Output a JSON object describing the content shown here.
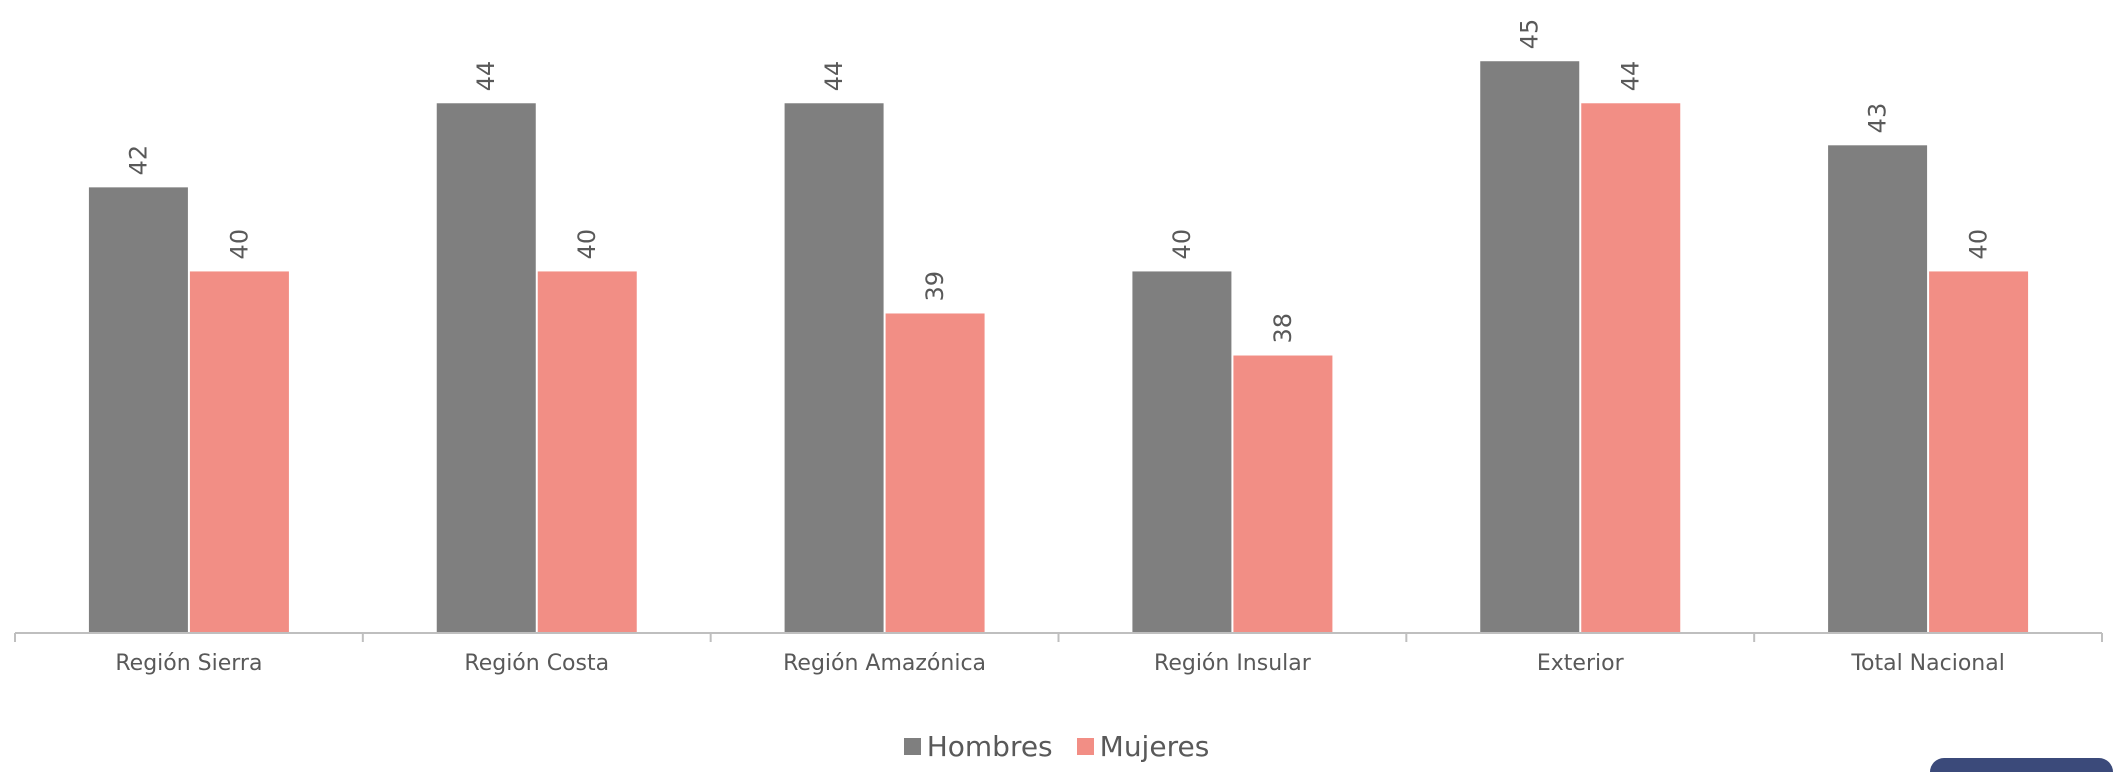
{
  "chart_data": {
    "type": "bar",
    "categories": [
      "Región Sierra",
      "Región Costa",
      "Región Amazónica",
      "Región Insular",
      "Exterior",
      "Total Nacional"
    ],
    "series": [
      {
        "name": "Hombres",
        "color": "#7f7f7f",
        "values": [
          42,
          44,
          44,
          40,
          45,
          43
        ],
        "labels": [
          "42",
          "44",
          "44",
          "40",
          "45",
          "43"
        ]
      },
      {
        "name": "Mujeres",
        "color": "#f28e85",
        "values": [
          40,
          40,
          39,
          38,
          44,
          40
        ],
        "labels": [
          "40",
          "40",
          "39",
          "38",
          "44",
          "40"
        ]
      }
    ],
    "title": "",
    "xlabel": "",
    "ylabel": "",
    "ylim": [
      31.4,
      45.6
    ],
    "legend_position": "bottom",
    "grid": false,
    "data_labels": "rotated-vertical"
  }
}
